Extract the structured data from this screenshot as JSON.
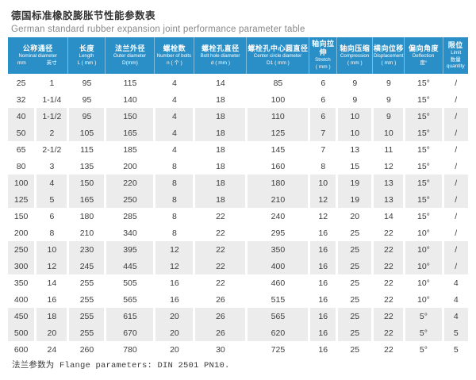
{
  "page": {
    "title_cn": "德国标准橡胶膨胀节性能参数表",
    "title_en": "German standard rubber expansion joint performance parameter table",
    "footer_note": "法兰参数为 Flange parameters: DIN 2501 PN10."
  },
  "colors": {
    "header_bg": "#2b8fc7",
    "header_text": "#ffffff",
    "alt_row_bg": "#ececec",
    "body_text": "#3c3c3c",
    "title_text": "#333333",
    "subtitle_text": "#888888"
  },
  "table": {
    "header_columns": [
      {
        "key": "nominal-diameter",
        "cn": "公称通径",
        "en": "Nominal diameter",
        "subs": [
          "mm",
          "英寸"
        ]
      },
      {
        "key": "length",
        "cn": "长度",
        "en": "Length",
        "sub": "L ( mm )"
      },
      {
        "key": "outer-diameter",
        "cn": "法兰外径",
        "en": "Outer diameter",
        "sub": "D(mm)"
      },
      {
        "key": "number-of-bolts",
        "cn": "螺栓数",
        "en": "Number of bolts",
        "sub": "n ( 个 )"
      },
      {
        "key": "bolt-hole-diameter",
        "cn": "螺栓孔直径",
        "en": "Bolt hole diameter",
        "sub": "d ( mm )"
      },
      {
        "key": "center-circle-diameter",
        "cn": "螺栓孔中心圆直径",
        "en": "Center circle diameter",
        "sub": "D1 ( mm )"
      },
      {
        "key": "stretch",
        "cn": "轴向拉伸",
        "en": "Stretch",
        "sub": "( mm )"
      },
      {
        "key": "compression",
        "cn": "轴向压缩",
        "en": "Compression",
        "sub": "( mm )"
      },
      {
        "key": "displacement",
        "cn": "横向位移",
        "en": "Displacement",
        "sub": "( mm )"
      },
      {
        "key": "deflection",
        "cn": "偏向角度",
        "en": "Deflection",
        "sub": "度°"
      },
      {
        "key": "limit",
        "cn": "限位",
        "en": "Limit",
        "sub": "数量 quantity"
      }
    ],
    "rows": [
      [
        "25",
        "1",
        "95",
        "115",
        "4",
        "14",
        "85",
        "6",
        "9",
        "9",
        "15°",
        "/"
      ],
      [
        "32",
        "1-1/4",
        "95",
        "140",
        "4",
        "18",
        "100",
        "6",
        "9",
        "9",
        "15°",
        "/"
      ],
      [
        "40",
        "1-1/2",
        "95",
        "150",
        "4",
        "18",
        "110",
        "6",
        "10",
        "9",
        "15°",
        "/"
      ],
      [
        "50",
        "2",
        "105",
        "165",
        "4",
        "18",
        "125",
        "7",
        "10",
        "10",
        "15°",
        "/"
      ],
      [
        "65",
        "2-1/2",
        "115",
        "185",
        "4",
        "18",
        "145",
        "7",
        "13",
        "11",
        "15°",
        "/"
      ],
      [
        "80",
        "3",
        "135",
        "200",
        "8",
        "18",
        "160",
        "8",
        "15",
        "12",
        "15°",
        "/"
      ],
      [
        "100",
        "4",
        "150",
        "220",
        "8",
        "18",
        "180",
        "10",
        "19",
        "13",
        "15°",
        "/"
      ],
      [
        "125",
        "5",
        "165",
        "250",
        "8",
        "18",
        "210",
        "12",
        "19",
        "13",
        "15°",
        "/"
      ],
      [
        "150",
        "6",
        "180",
        "285",
        "8",
        "22",
        "240",
        "12",
        "20",
        "14",
        "15°",
        "/"
      ],
      [
        "200",
        "8",
        "210",
        "340",
        "8",
        "22",
        "295",
        "16",
        "25",
        "22",
        "10°",
        "/"
      ],
      [
        "250",
        "10",
        "230",
        "395",
        "12",
        "22",
        "350",
        "16",
        "25",
        "22",
        "10°",
        "/"
      ],
      [
        "300",
        "12",
        "245",
        "445",
        "12",
        "22",
        "400",
        "16",
        "25",
        "22",
        "10°",
        "/"
      ],
      [
        "350",
        "14",
        "255",
        "505",
        "16",
        "22",
        "460",
        "16",
        "25",
        "22",
        "10°",
        "4"
      ],
      [
        "400",
        "16",
        "255",
        "565",
        "16",
        "26",
        "515",
        "16",
        "25",
        "22",
        "10°",
        "4"
      ],
      [
        "450",
        "18",
        "255",
        "615",
        "20",
        "26",
        "565",
        "16",
        "25",
        "22",
        "5°",
        "4"
      ],
      [
        "500",
        "20",
        "255",
        "670",
        "20",
        "26",
        "620",
        "16",
        "25",
        "22",
        "5°",
        "5"
      ],
      [
        "600",
        "24",
        "260",
        "780",
        "20",
        "30",
        "725",
        "16",
        "25",
        "22",
        "5°",
        "5"
      ]
    ],
    "shaded_row_indices": [
      2,
      3,
      6,
      7,
      10,
      11,
      14,
      15
    ]
  }
}
